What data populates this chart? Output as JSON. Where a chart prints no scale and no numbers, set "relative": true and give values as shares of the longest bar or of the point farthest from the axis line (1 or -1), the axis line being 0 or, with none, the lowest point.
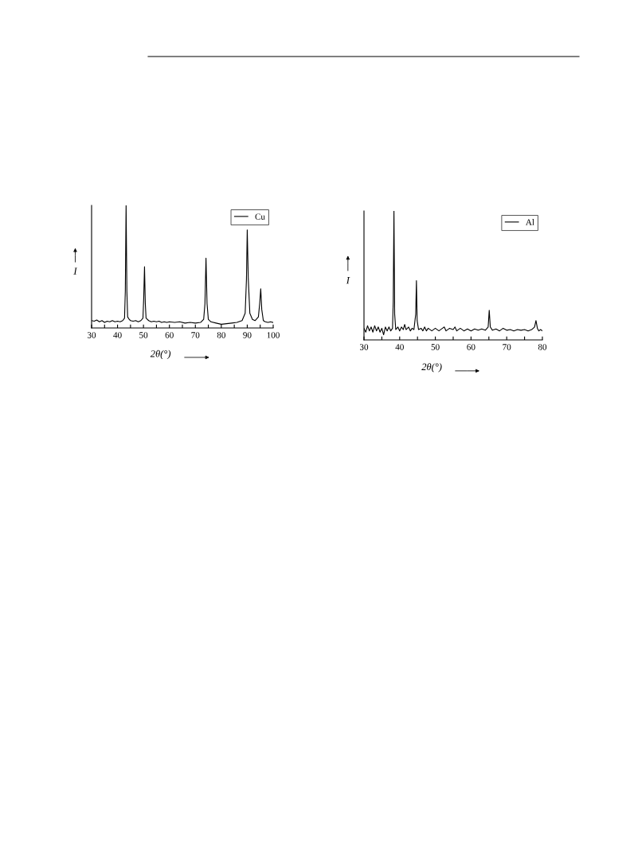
{
  "chart_data": [
    {
      "type": "line",
      "relative": true,
      "xlabel": "2θ(°)",
      "ylabel": "I",
      "xlim": [
        30,
        100
      ],
      "xticks": [
        30,
        {
          "value": 35,
          "label": null
        },
        40,
        {
          "value": 45,
          "label": null
        },
        50,
        {
          "value": 55,
          "label": null
        },
        60,
        {
          "value": 65,
          "label": null
        },
        70,
        {
          "value": 75,
          "label": null
        },
        80,
        {
          "value": 85,
          "label": null
        },
        90,
        {
          "value": 95,
          "label": null
        },
        100
      ],
      "tick_labels": "x",
      "grid": false,
      "legend": "top right",
      "marker": "none",
      "line_style": "solid",
      "x": [
        30,
        31,
        32,
        33,
        34,
        35,
        36,
        37,
        38,
        39,
        40,
        41,
        42,
        42.7,
        43.0,
        43.3,
        43.6,
        43.9,
        44.5,
        45,
        46,
        47,
        48,
        49,
        49.8,
        50.1,
        50.4,
        50.7,
        51.0,
        52,
        53,
        54,
        55,
        56,
        57,
        58,
        59,
        60,
        62,
        64,
        66,
        68,
        70,
        72,
        73.2,
        73.7,
        74.1,
        74.5,
        75.0,
        76,
        78,
        80,
        82,
        84,
        86,
        88,
        89.2,
        89.7,
        90.0,
        90.4,
        91,
        92,
        93,
        94.3,
        94.8,
        95.2,
        95.6,
        96.2,
        97,
        98,
        99,
        100
      ],
      "series": [
        {
          "name": "Cu",
          "color": "#000000",
          "values": [
            0.06,
            0.055,
            0.065,
            0.05,
            0.06,
            0.045,
            0.055,
            0.05,
            0.06,
            0.05,
            0.055,
            0.05,
            0.06,
            0.08,
            0.3,
            1.0,
            0.3,
            0.09,
            0.07,
            0.06,
            0.055,
            0.06,
            0.05,
            0.06,
            0.08,
            0.25,
            0.5,
            0.2,
            0.08,
            0.06,
            0.05,
            0.055,
            0.05,
            0.055,
            0.045,
            0.05,
            0.045,
            0.05,
            0.045,
            0.05,
            0.04,
            0.045,
            0.04,
            0.045,
            0.07,
            0.2,
            0.57,
            0.2,
            0.07,
            0.05,
            0.04,
            0.03,
            0.035,
            0.04,
            0.045,
            0.06,
            0.12,
            0.4,
            0.8,
            0.4,
            0.12,
            0.07,
            0.06,
            0.09,
            0.2,
            0.32,
            0.15,
            0.06,
            0.05,
            0.045,
            0.05,
            0.045
          ]
        }
      ]
    },
    {
      "type": "line",
      "relative": true,
      "xlabel": "2θ(°)",
      "ylabel": "I",
      "xlim": [
        30,
        80
      ],
      "xticks": [
        30,
        {
          "value": 35,
          "label": null
        },
        40,
        {
          "value": 45,
          "label": null
        },
        50,
        {
          "value": 55,
          "label": null
        },
        60,
        {
          "value": 65,
          "label": null
        },
        70,
        {
          "value": 75,
          "label": null
        },
        80
      ],
      "tick_labels": "x",
      "grid": false,
      "legend": "top right",
      "marker": "none",
      "line_style": "solid",
      "x": [
        30,
        30.5,
        31,
        31.5,
        32,
        32.5,
        33,
        33.5,
        34,
        34.5,
        35,
        35.5,
        36,
        36.5,
        37,
        37.5,
        38,
        38.2,
        38.4,
        38.6,
        38.9,
        39.5,
        40,
        40.5,
        41,
        41.4,
        41.8,
        42.5,
        43,
        43.5,
        44,
        44.5,
        44.7,
        44.9,
        45.3,
        46,
        46.5,
        47,
        47.5,
        48,
        49,
        50,
        51,
        52,
        52.5,
        53,
        54,
        55,
        55.5,
        56,
        57,
        58,
        59,
        60,
        61,
        62,
        63,
        64,
        64.8,
        65.1,
        65.4,
        66,
        67,
        68,
        69,
        70,
        71,
        72,
        73,
        74,
        75,
        76,
        77,
        77.8,
        78.2,
        78.6,
        79,
        79.5,
        80
      ],
      "series": [
        {
          "name": "Al",
          "color": "#000000",
          "values": [
            0.09,
            0.06,
            0.11,
            0.07,
            0.1,
            0.06,
            0.11,
            0.07,
            0.1,
            0.06,
            0.09,
            0.04,
            0.1,
            0.07,
            0.1,
            0.07,
            0.09,
            0.3,
            1.0,
            0.2,
            0.08,
            0.1,
            0.07,
            0.1,
            0.08,
            0.12,
            0.08,
            0.1,
            0.07,
            0.09,
            0.08,
            0.2,
            0.46,
            0.15,
            0.08,
            0.09,
            0.07,
            0.1,
            0.07,
            0.09,
            0.07,
            0.09,
            0.07,
            0.09,
            0.1,
            0.07,
            0.09,
            0.08,
            0.1,
            0.07,
            0.09,
            0.07,
            0.085,
            0.07,
            0.085,
            0.075,
            0.085,
            0.075,
            0.1,
            0.23,
            0.1,
            0.075,
            0.085,
            0.07,
            0.09,
            0.075,
            0.08,
            0.07,
            0.08,
            0.075,
            0.08,
            0.07,
            0.08,
            0.1,
            0.15,
            0.09,
            0.07,
            0.08,
            0.07
          ]
        }
      ]
    }
  ]
}
